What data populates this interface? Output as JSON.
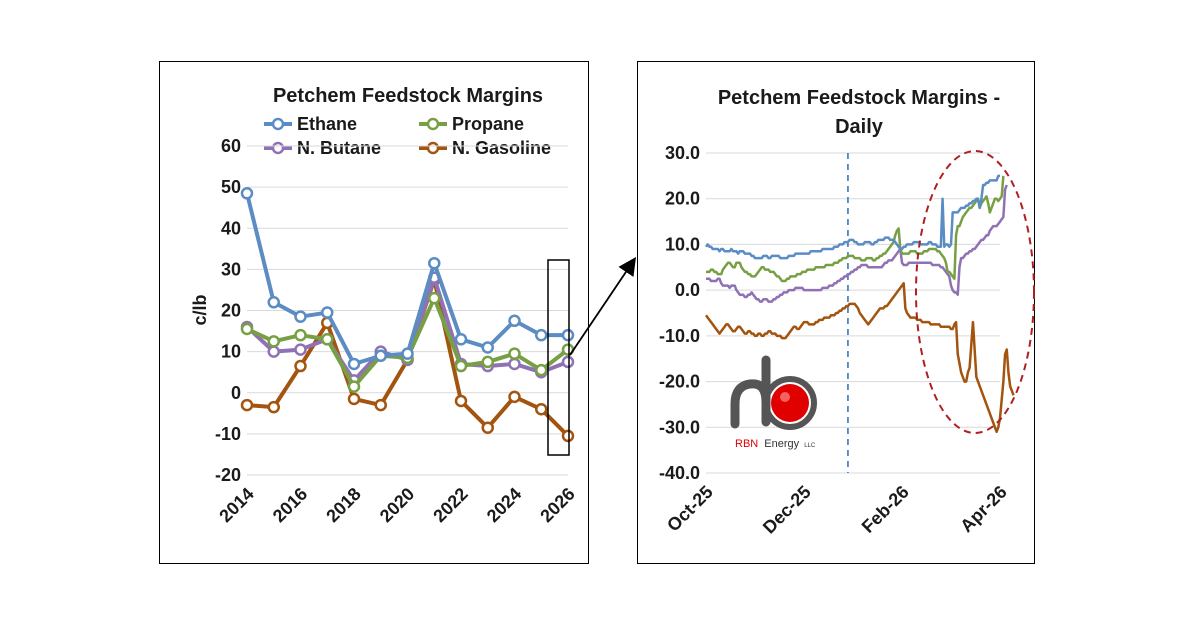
{
  "colors": {
    "ethane": "#5b8cc4",
    "propane": "#77a044",
    "butane": "#8f72b5",
    "gasoline": "#a3540f",
    "grid": "#d9d9d9",
    "highlight_ellipse": "#b02020",
    "divider_line": "#4f86c6",
    "logo_red": "#e00000",
    "logo_gray": "#555555"
  },
  "chart_data": [
    {
      "type": "line",
      "title": "Petchem Feedstock Margins",
      "ylabel": "c/lb",
      "xlabel": "",
      "ylim": [
        -20,
        60
      ],
      "yticks": [
        -20,
        -10,
        0,
        10,
        20,
        30,
        40,
        50,
        60
      ],
      "xlim": [
        2014,
        2026
      ],
      "xticks": [
        2014,
        2016,
        2018,
        2020,
        2022,
        2024,
        2026
      ],
      "grid": true,
      "legend": "top",
      "x": [
        2014,
        2015,
        2016,
        2017,
        2018,
        2019,
        2020,
        2021,
        2022,
        2023,
        2024,
        2025,
        2026
      ],
      "series": [
        {
          "name": "Ethane",
          "color_key": "ethane",
          "values": [
            48.5,
            22,
            18.5,
            19.5,
            7,
            9,
            9.5,
            31.5,
            13,
            11,
            17.5,
            14,
            14
          ]
        },
        {
          "name": "Propane",
          "color_key": "propane",
          "values": [
            15.5,
            12.5,
            14,
            13,
            1.5,
            9,
            8.5,
            23,
            6.5,
            7.5,
            9.5,
            5.5,
            10.5
          ]
        },
        {
          "name": "N. Butane",
          "color_key": "butane",
          "values": [
            16,
            10,
            10.5,
            13,
            3,
            10,
            8,
            28,
            7,
            6.5,
            7,
            5,
            7.5
          ]
        },
        {
          "name": "N. Gasoline",
          "color_key": "gasoline",
          "values": [
            -3,
            -3.5,
            6.5,
            17,
            -1.5,
            -3,
            8,
            27.5,
            -2,
            -8.5,
            -1,
            -4,
            -10.5
          ]
        }
      ]
    },
    {
      "type": "line",
      "title": "Petchem Feedstock Margins - Daily",
      "ylabel": "",
      "xlabel": "",
      "ylim": [
        -40,
        30
      ],
      "yticks": [
        "-40.0",
        "-30.0",
        "-20.0",
        "-10.0",
        "0.0",
        "10.0",
        "20.0",
        "30.0"
      ],
      "xticks": [
        "Oct-25",
        "Dec-25",
        "Feb-26",
        "Apr-26"
      ],
      "grid": true,
      "divider_at_index": 84,
      "series": [
        {
          "name": "Ethane",
          "color_key": "ethane",
          "values": [
            9.5,
            10,
            9.5,
            9.5,
            9,
            9,
            9,
            9,
            8.5,
            9,
            9,
            8.5,
            8.5,
            8.5,
            8.5,
            9,
            8.5,
            8.5,
            8.5,
            8,
            8.5,
            8.5,
            8.5,
            8,
            8,
            8,
            8,
            7.5,
            7.5,
            7,
            7,
            7,
            7,
            7,
            7.5,
            7.5,
            7.5,
            7,
            7,
            7.5,
            7.5,
            7.5,
            7.5,
            7.5,
            7,
            7,
            7,
            7,
            7,
            7.5,
            7.5,
            7.5,
            7.5,
            8,
            8,
            8,
            8,
            8,
            8,
            8,
            8,
            8,
            8.5,
            8.5,
            8.5,
            8.5,
            8.5,
            8.5,
            8.5,
            9,
            9,
            9,
            9,
            9,
            9,
            9,
            9.5,
            9.5,
            9.5,
            10,
            10,
            10,
            10.5,
            10.5,
            10.5,
            11,
            11,
            11,
            10.5,
            10.5,
            10,
            10,
            10,
            10,
            10.5,
            10.5,
            10.5,
            10.5,
            10,
            10,
            10.5,
            10.5,
            11,
            11,
            11,
            11,
            11.5,
            11.5,
            11.5,
            11,
            11,
            11,
            10.5,
            10,
            9.5,
            9,
            9,
            9.5,
            9.5,
            10,
            10,
            10,
            10,
            10.5,
            10.5,
            10.5,
            10.5,
            10,
            10,
            10,
            10,
            10,
            10.5,
            10.5,
            10,
            10,
            10,
            9.5,
            9.5,
            9.5,
            20,
            9.5,
            10,
            10,
            9.5,
            10,
            17,
            17,
            17,
            17,
            17.5,
            18,
            18,
            18,
            18.5,
            18.5,
            19,
            19,
            19.5,
            19.5,
            20,
            20,
            18,
            20,
            23,
            23,
            23.5,
            23.5,
            24,
            24,
            24,
            24,
            24,
            25,
            25
          ]
        },
        {
          "name": "Propane",
          "color_key": "propane",
          "values": [
            4,
            4,
            4,
            4.5,
            4.5,
            4,
            4,
            3.5,
            3.5,
            3.5,
            4.5,
            5,
            5.5,
            6,
            6,
            5.5,
            5,
            5,
            6,
            6,
            6,
            5,
            4.5,
            4,
            4,
            3.5,
            3.5,
            3,
            3,
            3,
            3.5,
            4,
            4.5,
            5,
            5,
            4.5,
            4.5,
            4.5,
            4,
            4,
            4,
            3.5,
            3,
            3,
            2.5,
            2,
            2,
            2,
            2.5,
            2.5,
            3,
            3,
            3,
            3,
            3.5,
            3.5,
            3.5,
            4,
            4,
            4,
            4.5,
            4.5,
            4.5,
            4.5,
            4.5,
            5,
            5,
            5,
            5,
            5,
            5,
            5.5,
            5.5,
            5.5,
            5.5,
            5.5,
            6,
            6,
            6,
            6.5,
            6.5,
            7,
            7,
            7,
            7.5,
            7.5,
            7.5,
            7.5,
            7,
            7,
            7,
            7,
            6.5,
            6.5,
            6.5,
            7,
            7,
            7,
            7,
            6.5,
            6.5,
            7,
            7,
            7.5,
            7.5,
            8,
            8,
            8.5,
            9,
            9.5,
            10,
            10.5,
            12,
            13,
            13.5,
            9,
            8,
            8,
            8,
            8,
            8,
            8.5,
            8.5,
            8.5,
            8.5,
            8,
            8,
            8,
            8,
            8.5,
            8.5,
            8.5,
            9,
            9,
            9,
            9,
            9,
            8.5,
            8.5,
            8,
            7.5,
            7,
            6,
            4,
            4,
            3.5,
            3,
            2.5,
            12,
            14,
            14,
            15,
            16,
            16.5,
            17,
            17.5,
            18,
            18,
            18.5,
            19,
            19.5,
            20,
            18,
            19,
            19.5,
            20,
            20.5,
            19,
            17,
            18,
            19,
            20,
            20,
            19.5,
            20,
            20.5,
            25
          ]
        },
        {
          "name": "N. Butane",
          "color_key": "butane",
          "values": [
            2.5,
            2.5,
            2.5,
            2,
            2,
            2,
            2,
            2.5,
            2.5,
            1.5,
            1,
            1,
            1,
            1,
            0.5,
            1,
            1,
            1,
            0,
            -0.5,
            -1,
            -1,
            -1,
            -1.5,
            -1.5,
            -1,
            -1,
            -0.5,
            -1,
            -1.5,
            -2,
            -2,
            -2.5,
            -2.5,
            -2,
            -2,
            -2,
            -2.5,
            -2.5,
            -2.5,
            -2,
            -2,
            -1.5,
            -1.5,
            -1,
            -1,
            -0.5,
            -0.5,
            -0.5,
            0,
            0,
            0,
            0,
            0.5,
            0.5,
            0.5,
            0.5,
            0.5,
            0,
            0,
            0,
            0,
            0,
            0,
            0,
            0,
            0,
            0,
            0,
            0.5,
            0.5,
            0.5,
            0.5,
            1,
            1,
            1,
            1.5,
            1.5,
            2,
            2,
            2.5,
            2.5,
            3,
            3,
            3.5,
            3.5,
            4,
            4,
            4.5,
            4.5,
            5,
            5,
            5.5,
            5.5,
            5.5,
            5.5,
            5,
            5,
            5,
            5,
            5,
            5,
            5,
            5,
            5,
            5.5,
            6,
            6,
            6.5,
            6.5,
            6.5,
            7,
            7.5,
            8,
            8.5,
            9,
            6,
            5.5,
            5.5,
            5.5,
            6,
            6,
            6,
            6,
            6,
            6,
            6,
            6,
            6,
            6,
            6,
            6,
            6,
            6,
            5.5,
            5.5,
            5.5,
            5.5,
            5.5,
            5,
            5,
            4.5,
            4,
            3.5,
            3,
            1,
            0,
            -0.5,
            -0.5,
            -1,
            5,
            7,
            7,
            7.5,
            8,
            8,
            8.5,
            8.5,
            9,
            9,
            9.5,
            10,
            10.5,
            11,
            11,
            11.5,
            12,
            12,
            13,
            13.5,
            14,
            14,
            14,
            14.5,
            15,
            15.5,
            16,
            22,
            23
          ]
        },
        {
          "name": "N. Gasoline",
          "color_key": "gasoline",
          "values": [
            -5.5,
            -6,
            -6.5,
            -7,
            -7.5,
            -8,
            -8.5,
            -9,
            -9.5,
            -9,
            -8.5,
            -8,
            -7.5,
            -7.5,
            -8,
            -8.5,
            -9,
            -9,
            -8.5,
            -8,
            -8,
            -8.5,
            -9,
            -9.5,
            -9.5,
            -9,
            -9,
            -9.5,
            -9.5,
            -10,
            -10,
            -9.5,
            -9.5,
            -10,
            -10,
            -9.5,
            -9.5,
            -9,
            -9,
            -9.5,
            -9.5,
            -9.5,
            -10,
            -10,
            -10,
            -10.5,
            -10.5,
            -10.5,
            -10,
            -9.5,
            -9,
            -8.5,
            -8,
            -8,
            -8.5,
            -8.5,
            -8,
            -7.5,
            -7,
            -7,
            -7,
            -7.5,
            -7.5,
            -7.5,
            -7.5,
            -7,
            -7,
            -6.5,
            -6.5,
            -6.5,
            -6,
            -6,
            -6,
            -6,
            -5.5,
            -5.5,
            -5.5,
            -5,
            -5,
            -4.5,
            -4.5,
            -4,
            -4,
            -3.5,
            -3.5,
            -3,
            -3,
            -3,
            -3,
            -3.5,
            -4,
            -5,
            -5.5,
            -6,
            -6.5,
            -7,
            -7.5,
            -7,
            -6.5,
            -6,
            -5.5,
            -5,
            -4.5,
            -4,
            -4,
            -4,
            -3.5,
            -3.5,
            -3,
            -2.5,
            -2,
            -1.5,
            -1,
            -0.5,
            0,
            0.5,
            1,
            1.5,
            -4,
            -5,
            -5.5,
            -6,
            -6,
            -6,
            -6,
            -6.5,
            -6.5,
            -6.5,
            -7,
            -7,
            -7,
            -7,
            -7,
            -7.5,
            -7.5,
            -7.5,
            -7.5,
            -7.5,
            -7.5,
            -8,
            -8,
            -8,
            -8,
            -8,
            -8,
            -8.5,
            -8.5,
            -7.5,
            -7,
            -14,
            -16,
            -18,
            -19,
            -20,
            -20,
            -18,
            -17,
            -12,
            -7,
            -13,
            -19,
            -20,
            -21,
            -22,
            -23,
            -24,
            -25,
            -26,
            -27,
            -28,
            -29,
            -30,
            -31,
            -30,
            -28,
            -24,
            -20,
            -14,
            -13,
            -18,
            -21,
            -22,
            -23
          ]
        }
      ]
    }
  ],
  "logo": {
    "brand": "RBN",
    "name": "Energy",
    "suffix": "LLC"
  }
}
